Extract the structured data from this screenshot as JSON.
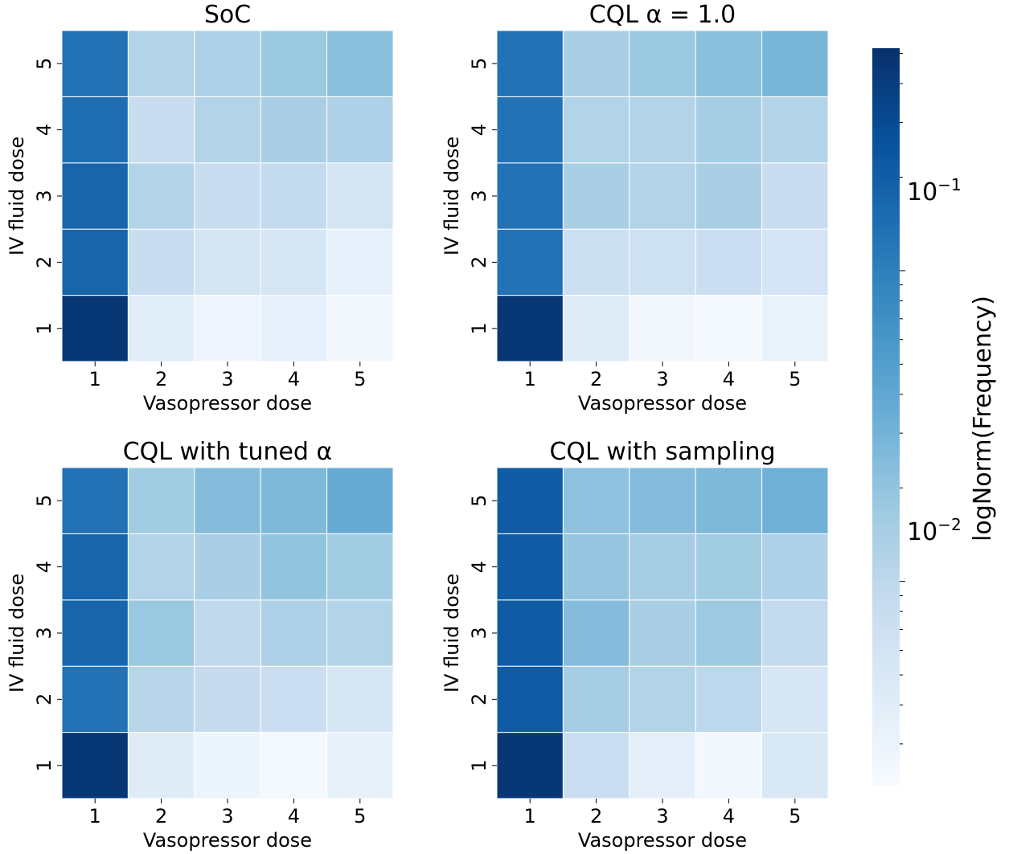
{
  "colorbar": {
    "label": "logNorm(Frequency)",
    "ticks": [
      {
        "base": "10",
        "exp": "−1",
        "value": 0.1
      },
      {
        "base": "10",
        "exp": "−2",
        "value": 0.01
      }
    ],
    "vmin": 0.0022,
    "vmax": 0.52,
    "colormap": "Blues"
  },
  "chart_data": [
    {
      "type": "heatmap",
      "title": "SoC",
      "xlabel": "Vasopressor dose",
      "ylabel": "IV fluid dose",
      "x_categories": [
        "1",
        "2",
        "3",
        "4",
        "5"
      ],
      "y_categories": [
        "1",
        "2",
        "3",
        "4",
        "5"
      ],
      "values": [
        [
          0.45,
          0.004,
          0.0028,
          0.0035,
          0.0025
        ],
        [
          0.17,
          0.008,
          0.006,
          0.0055,
          0.0035
        ],
        [
          0.17,
          0.012,
          0.008,
          0.009,
          0.006
        ],
        [
          0.14,
          0.008,
          0.012,
          0.014,
          0.013
        ],
        [
          0.13,
          0.012,
          0.013,
          0.018,
          0.022
        ]
      ]
    },
    {
      "type": "heatmap",
      "title": "CQL α = 1.0",
      "xlabel": "Vasopressor dose",
      "ylabel": "IV fluid dose",
      "x_categories": [
        "1",
        "2",
        "3",
        "4",
        "5"
      ],
      "y_categories": [
        "1",
        "2",
        "3",
        "4",
        "5"
      ],
      "values": [
        [
          0.45,
          0.0042,
          0.0026,
          0.0024,
          0.0033
        ],
        [
          0.13,
          0.007,
          0.0068,
          0.0075,
          0.0058
        ],
        [
          0.13,
          0.014,
          0.012,
          0.014,
          0.0078
        ],
        [
          0.13,
          0.012,
          0.012,
          0.015,
          0.012
        ],
        [
          0.13,
          0.014,
          0.018,
          0.022,
          0.028
        ]
      ]
    },
    {
      "type": "heatmap",
      "title": "CQL with tuned α",
      "xlabel": "Vasopressor dose",
      "ylabel": "IV fluid dose",
      "x_categories": [
        "1",
        "2",
        "3",
        "4",
        "5"
      ],
      "y_categories": [
        "1",
        "2",
        "3",
        "4",
        "5"
      ],
      "values": [
        [
          0.45,
          0.0042,
          0.0029,
          0.0024,
          0.0034
        ],
        [
          0.13,
          0.011,
          0.0085,
          0.0075,
          0.0055
        ],
        [
          0.17,
          0.018,
          0.0095,
          0.013,
          0.012
        ],
        [
          0.17,
          0.012,
          0.014,
          0.02,
          0.016
        ],
        [
          0.13,
          0.016,
          0.024,
          0.026,
          0.036
        ]
      ]
    },
    {
      "type": "heatmap",
      "title": "CQL with sampling",
      "xlabel": "Vasopressor dose",
      "ylabel": "IV fluid dose",
      "x_categories": [
        "1",
        "2",
        "3",
        "4",
        "5"
      ],
      "y_categories": [
        "1",
        "2",
        "3",
        "4",
        "5"
      ],
      "values": [
        [
          0.45,
          0.0075,
          0.0038,
          0.0025,
          0.005
        ],
        [
          0.21,
          0.015,
          0.012,
          0.01,
          0.0055
        ],
        [
          0.21,
          0.024,
          0.014,
          0.017,
          0.009
        ],
        [
          0.21,
          0.019,
          0.015,
          0.016,
          0.013
        ],
        [
          0.21,
          0.021,
          0.024,
          0.026,
          0.032
        ]
      ]
    }
  ]
}
